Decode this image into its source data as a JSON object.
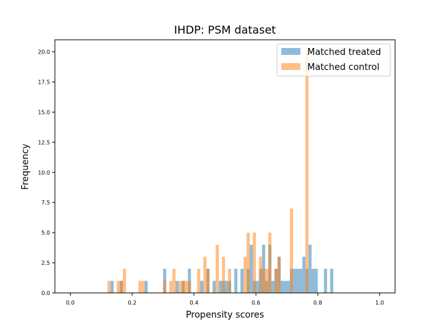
{
  "chart_data": {
    "type": "bar",
    "subtype": "overlapping-histogram",
    "title": "IHDP: PSM dataset",
    "xlabel": "Propensity scores",
    "ylabel": "Frequency",
    "xlim": [
      -0.05,
      1.05
    ],
    "ylim": [
      0,
      21
    ],
    "bin_width": 0.01,
    "xticks": [
      0.0,
      0.2,
      0.4,
      0.6,
      0.8,
      1.0
    ],
    "xtick_labels": [
      "0.0",
      "0.2",
      "0.4",
      "0.6",
      "0.8",
      "1.0"
    ],
    "yticks": [
      0,
      2.5,
      5,
      7.5,
      10,
      12.5,
      15,
      17.5,
      20
    ],
    "ytick_labels": [
      "0.0",
      "2.5",
      "5.0",
      "7.5",
      "10.0",
      "12.5",
      "15.0",
      "17.5",
      "20.0"
    ],
    "grid": false,
    "legend_position": "top-right",
    "series": [
      {
        "name": "Matched treated",
        "color": "#1f77b4",
        "alpha": 0.5,
        "bins": [
          [
            0.13,
            1
          ],
          [
            0.16,
            1
          ],
          [
            0.24,
            1
          ],
          [
            0.3,
            2
          ],
          [
            0.34,
            1
          ],
          [
            0.36,
            1
          ],
          [
            0.38,
            2
          ],
          [
            0.42,
            1
          ],
          [
            0.44,
            2
          ],
          [
            0.46,
            1
          ],
          [
            0.48,
            1
          ],
          [
            0.49,
            1
          ],
          [
            0.5,
            1
          ],
          [
            0.51,
            1
          ],
          [
            0.53,
            2
          ],
          [
            0.55,
            2
          ],
          [
            0.57,
            2
          ],
          [
            0.58,
            4
          ],
          [
            0.59,
            1
          ],
          [
            0.6,
            1
          ],
          [
            0.61,
            2
          ],
          [
            0.62,
            4
          ],
          [
            0.63,
            1
          ],
          [
            0.64,
            4
          ],
          [
            0.65,
            1
          ],
          [
            0.66,
            2
          ],
          [
            0.67,
            3
          ],
          [
            0.68,
            1
          ],
          [
            0.69,
            1
          ],
          [
            0.7,
            1
          ],
          [
            0.71,
            2
          ],
          [
            0.72,
            2
          ],
          [
            0.73,
            2
          ],
          [
            0.74,
            2
          ],
          [
            0.75,
            3
          ],
          [
            0.76,
            2
          ],
          [
            0.77,
            4
          ],
          [
            0.78,
            2
          ],
          [
            0.79,
            2
          ],
          [
            0.82,
            2
          ],
          [
            0.84,
            2
          ]
        ]
      },
      {
        "name": "Matched control",
        "color": "#ff7f0e",
        "alpha": 0.5,
        "bins": [
          [
            0.12,
            1
          ],
          [
            0.15,
            1
          ],
          [
            0.16,
            1
          ],
          [
            0.17,
            2
          ],
          [
            0.22,
            1
          ],
          [
            0.23,
            1
          ],
          [
            0.3,
            1
          ],
          [
            0.32,
            1
          ],
          [
            0.33,
            2
          ],
          [
            0.35,
            1
          ],
          [
            0.36,
            1
          ],
          [
            0.37,
            1
          ],
          [
            0.38,
            1
          ],
          [
            0.41,
            2
          ],
          [
            0.43,
            3
          ],
          [
            0.44,
            2
          ],
          [
            0.47,
            4
          ],
          [
            0.49,
            3
          ],
          [
            0.51,
            2
          ],
          [
            0.56,
            3
          ],
          [
            0.57,
            5
          ],
          [
            0.59,
            5
          ],
          [
            0.61,
            3
          ],
          [
            0.62,
            2
          ],
          [
            0.63,
            2
          ],
          [
            0.64,
            5
          ],
          [
            0.66,
            2
          ],
          [
            0.67,
            3
          ],
          [
            0.71,
            7
          ],
          [
            0.76,
            20
          ]
        ]
      }
    ]
  }
}
